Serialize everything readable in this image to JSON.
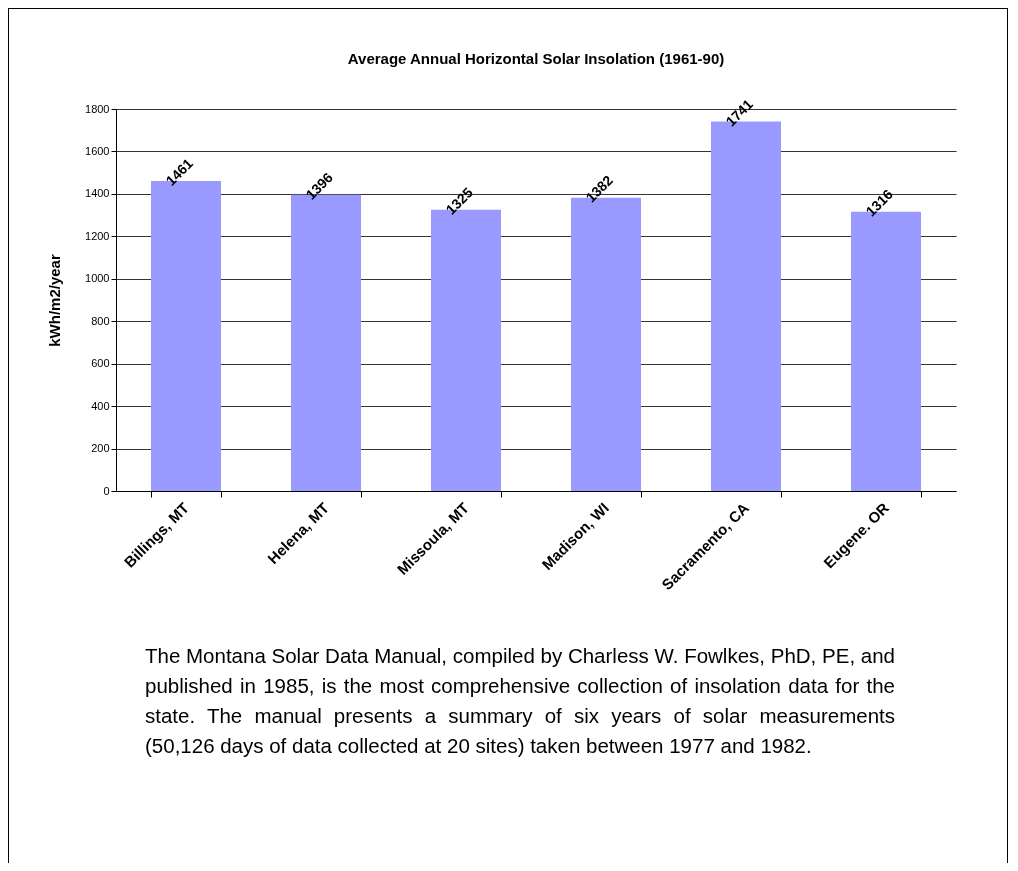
{
  "chart_data": {
    "type": "bar",
    "title": "Average Annual Horizontal Solar Insolation (1961-90)",
    "ylabel": "kWh/m2/year",
    "categories": [
      "Billings, MT",
      "Helena, MT",
      "Missoula, MT",
      "Madison, WI",
      "Sacramento, CA",
      "Eugene. OR"
    ],
    "values": [
      1461,
      1396,
      1325,
      1382,
      1741,
      1316
    ],
    "color": "#9999ff",
    "ylim": [
      0,
      1800
    ],
    "yticks": [
      0,
      200,
      400,
      600,
      800,
      1000,
      1200,
      1400,
      1600,
      1800
    ],
    "grid": "y",
    "data_labels": true,
    "annotations": [
      "The Montana Solar Data Manual, compiled by Charless W. Fowlkes, PhD, PE, and published in 1985, is the most  comprehensive collection of insolation data for the state. The manual presents a summary of six years of solar measurements (50,126 days of data collected at 20 sites) taken between 1977 and 1982."
    ]
  }
}
